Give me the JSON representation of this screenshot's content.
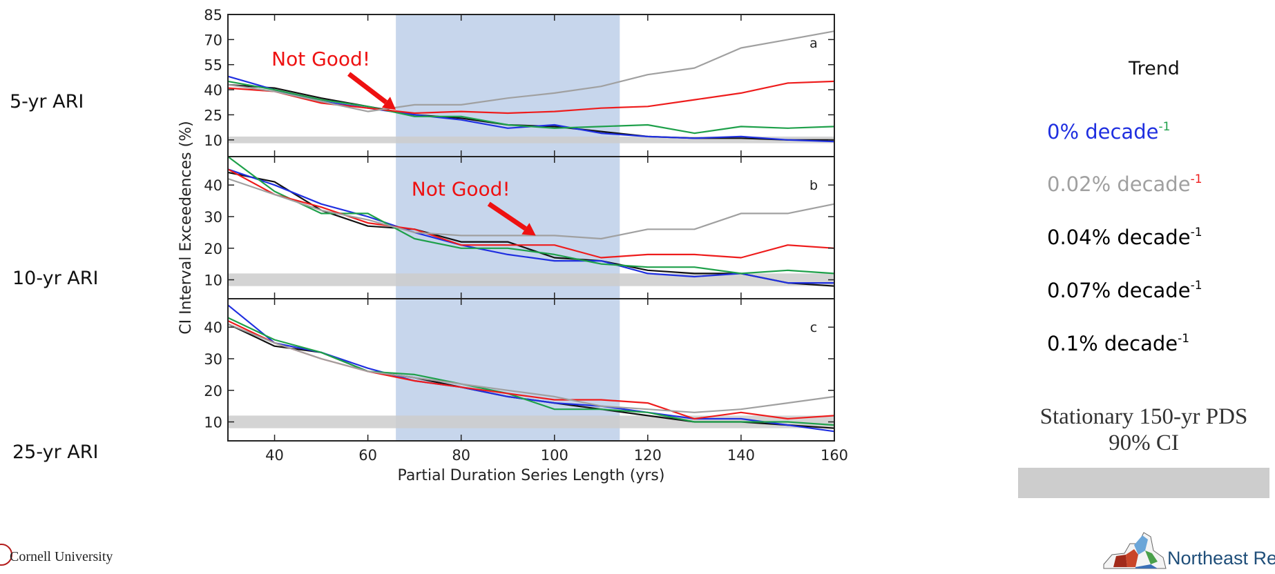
{
  "ari_labels": [
    "5-yr ARI",
    "10-yr ARI",
    "25-yr ARI"
  ],
  "legend": {
    "title": "Trend",
    "items": [
      {
        "text": "0% decade",
        "sup": "-1",
        "color": "#111111"
      },
      {
        "text": "0.02% decade",
        "sup": "-1",
        "color": "#1f2fe0"
      },
      {
        "text": "0.04% decade",
        "sup": "-1",
        "color": "#1ea04a"
      },
      {
        "text": "0.07% decade",
        "sup": "-1",
        "color": "#ee1c1c"
      },
      {
        "text": "0.1% decade",
        "sup": "-1",
        "color": "#a0a0a0"
      }
    ],
    "stationary_line1": "Stationary 150-yr PDS",
    "stationary_line2": "90% CI"
  },
  "footer": {
    "left": "Cornell University",
    "right": "Northeast Reg"
  },
  "chart_data": {
    "type": "line",
    "xlabel": "Partial Duration Series Length (yrs)",
    "ylabel": "CI Interval Exceedences (%)",
    "xlim": [
      30,
      160
    ],
    "x_ticks": [
      40,
      60,
      80,
      100,
      120,
      140,
      160
    ],
    "highlight_x_range": [
      66,
      114
    ],
    "highlight_color": "#b4c8e6",
    "ci_band_color": "#cccccc",
    "annotation_text": "Not Good!",
    "annotation_color": "#ee1111",
    "x": [
      30,
      40,
      50,
      60,
      70,
      80,
      90,
      100,
      110,
      120,
      130,
      140,
      150,
      160
    ],
    "panels": [
      {
        "label": "a",
        "ylim": [
          0,
          85
        ],
        "y_ticks": [
          10,
          25,
          40,
          55,
          70,
          85
        ],
        "ci_band": [
          8,
          12
        ],
        "annotation_arrow_to_x": 66,
        "annotation_arrow_to_y": 28,
        "series": [
          {
            "color": "#111111",
            "values": [
              43,
              41,
              35,
              30,
              25,
              23,
              19,
              18,
              15,
              12,
              11,
              11,
              10,
              10
            ]
          },
          {
            "color": "#1f2fe0",
            "values": [
              48,
              40,
              33,
              29,
              25,
              22,
              17,
              19,
              14,
              12,
              11,
              12,
              10,
              9
            ]
          },
          {
            "color": "#1ea04a",
            "values": [
              45,
              40,
              34,
              30,
              24,
              24,
              19,
              17,
              18,
              19,
              14,
              18,
              17,
              18
            ]
          },
          {
            "color": "#ee1c1c",
            "values": [
              41,
              39,
              32,
              29,
              26,
              27,
              26,
              27,
              29,
              30,
              34,
              38,
              44,
              45
            ]
          },
          {
            "color": "#a0a0a0",
            "values": [
              43,
              39,
              33,
              27,
              31,
              31,
              35,
              38,
              42,
              49,
              53,
              65,
              70,
              75
            ]
          }
        ]
      },
      {
        "label": "b",
        "ylim": [
          4,
          49
        ],
        "y_ticks": [
          10,
          20,
          30,
          40
        ],
        "ci_band": [
          8,
          12
        ],
        "annotation_arrow_to_x": 96,
        "annotation_arrow_to_y": 24,
        "series": [
          {
            "color": "#111111",
            "values": [
              44,
              41,
              32,
              27,
              26,
              22,
              22,
              17,
              16,
              13,
              12,
              12,
              9,
              8
            ]
          },
          {
            "color": "#1f2fe0",
            "values": [
              45,
              40,
              34,
              30,
              25,
              21,
              18,
              16,
              16,
              12,
              11,
              12,
              9,
              9
            ]
          },
          {
            "color": "#1ea04a",
            "values": [
              49,
              38,
              31,
              31,
              23,
              20,
              20,
              18,
              15,
              14,
              14,
              12,
              13,
              12
            ]
          },
          {
            "color": "#ee1c1c",
            "values": [
              45,
              37,
              33,
              28,
              26,
              21,
              21,
              21,
              17,
              18,
              18,
              17,
              21,
              20
            ]
          },
          {
            "color": "#a0a0a0",
            "values": [
              42,
              37,
              32,
              29,
              25,
              24,
              24,
              24,
              23,
              26,
              26,
              31,
              31,
              34
            ]
          }
        ]
      },
      {
        "label": "c",
        "ylim": [
          4,
          49
        ],
        "y_ticks": [
          10,
          20,
          30,
          40
        ],
        "ci_band": [
          8,
          12
        ],
        "series": [
          {
            "color": "#111111",
            "values": [
              41,
              34,
              32,
              26,
              24,
              21,
              18,
              16,
              14,
              12,
              10,
              10,
              9,
              8
            ]
          },
          {
            "color": "#1f2fe0",
            "values": [
              47,
              35,
              32,
              27,
              23,
              21,
              18,
              16,
              15,
              13,
              11,
              11,
              9,
              7
            ]
          },
          {
            "color": "#1ea04a",
            "values": [
              43,
              36,
              32,
              26,
              25,
              22,
              19,
              14,
              14,
              13,
              10,
              10,
              10,
              9
            ]
          },
          {
            "color": "#ee1c1c",
            "values": [
              42,
              35,
              30,
              26,
              23,
              21,
              19,
              17,
              17,
              16,
              11,
              13,
              11,
              12
            ]
          },
          {
            "color": "#a0a0a0",
            "values": [
              41,
              35,
              30,
              26,
              24,
              22,
              20,
              18,
              15,
              14,
              13,
              14,
              16,
              18
            ]
          }
        ]
      }
    ]
  }
}
